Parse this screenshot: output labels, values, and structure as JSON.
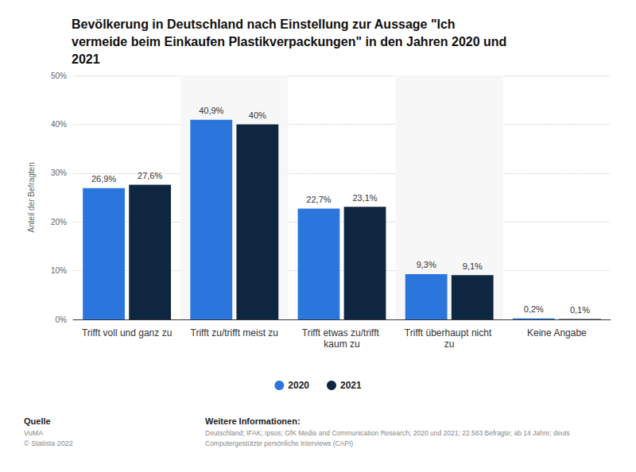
{
  "chart_data": {
    "type": "bar",
    "title": "Bevölkerung in Deutschland nach Einstellung zur Aussage \"Ich vermeide beim Einkaufen Plastikverpackungen\" in den Jahren 2020 und 2021",
    "y_label": "Anteil der Befragten",
    "categories": [
      "Trifft voll und ganz zu",
      "Trifft zu/trifft meist zu",
      "Trifft etwas zu/trifft kaum zu",
      "Trifft überhaupt nicht zu",
      "Keine Angabe"
    ],
    "series": [
      {
        "name": "2020",
        "color": "#2a76dd",
        "values": [
          26.9,
          40.9,
          22.7,
          9.3,
          0.2
        ],
        "value_labels": [
          "26,9%",
          "40,9%",
          "22,7%",
          "9,3%",
          "0,2%"
        ]
      },
      {
        "name": "2021",
        "color": "#0f2640",
        "values": [
          27.6,
          40,
          23.1,
          9.1,
          0.1
        ],
        "value_labels": [
          "27,6%",
          "40%",
          "23,1%",
          "9,1%",
          "0,1%"
        ]
      }
    ],
    "ylim": [
      0,
      50
    ],
    "yticks": [
      {
        "value": 0,
        "label": "0%"
      },
      {
        "value": 10,
        "label": "10%"
      },
      {
        "value": 20,
        "label": "20%"
      },
      {
        "value": 30,
        "label": "30%"
      },
      {
        "value": 40,
        "label": "40%"
      },
      {
        "value": 50,
        "label": "50%"
      }
    ],
    "grid": true,
    "legend": "bottom",
    "data_labels": true,
    "source_heading": "Quelle",
    "source": [
      "VuMA",
      "© Statista 2022"
    ],
    "info_heading": "Weitere Informationen:",
    "info": [
      "Deutschland; IFAK; Ipsos; GfK Media and Communication Research; 2020 und 2021; 22.563 Befragte; ab 14 Jahre; deuts",
      "Computergestützte persönliche Interviews (CAPI)"
    ]
  }
}
